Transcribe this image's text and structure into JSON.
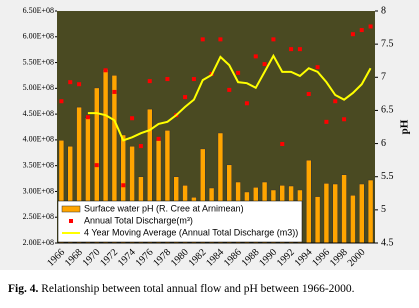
{
  "chart_data": {
    "type": "bar",
    "caption": {
      "label": "Fig. 4.",
      "text": "Relationship between total annual flow and pH between 1966-2000."
    },
    "y2label": "pH",
    "categories": [
      "1966",
      null,
      "1968",
      null,
      "1970",
      null,
      "1972",
      null,
      "1974",
      null,
      "1976",
      null,
      "1978",
      null,
      "1980",
      null,
      "1982",
      null,
      "1984",
      null,
      "1986",
      null,
      "1988",
      null,
      "1990",
      null,
      "1992",
      null,
      "1994",
      null,
      "1996",
      null,
      "1998",
      null,
      "2000",
      null
    ],
    "ylim": [
      200000000,
      650000000
    ],
    "yticks": [
      {
        "value": 200000000,
        "label": "2.00E+08"
      },
      {
        "value": 250000000,
        "label": "2.50E+08"
      },
      {
        "value": 300000000,
        "label": "3.00E+08"
      },
      {
        "value": 350000000,
        "label": "3.50E+08"
      },
      {
        "value": 400000000,
        "label": "4.00E+08"
      },
      {
        "value": 450000000,
        "label": "4.50E+08"
      },
      {
        "value": 500000000,
        "label": "5.00E+08"
      },
      {
        "value": 550000000,
        "label": "5.50E+08"
      },
      {
        "value": 600000000,
        "label": "6.00E+08"
      },
      {
        "value": 650000000,
        "label": "6.50E+08"
      }
    ],
    "y2lim": [
      4.5,
      8
    ],
    "y2ticks": [
      4.5,
      5,
      5.5,
      6,
      6.5,
      7,
      7.5,
      8
    ],
    "legend": "lower left",
    "series": [
      {
        "name": "Surface water pH (R. Cree at Arnimean)",
        "type": "bar",
        "axis": "y2",
        "color": "#ffa500",
        "values": [
          6.05,
          5.96,
          6.55,
          6.39,
          6.84,
          7.12,
          7.03,
          6.13,
          5.96,
          5.5,
          6.52,
          6.05,
          6.2,
          5.5,
          5.37,
          5.19,
          5.92,
          5.33,
          6.16,
          5.68,
          5.42,
          5.27,
          5.34,
          5.42,
          5.3,
          5.37,
          5.36,
          5.3,
          5.75,
          5.2,
          5.4,
          5.39,
          5.53,
          5.22,
          5.39,
          5.45
        ]
      },
      {
        "name": "Annual Total Discharge(m³)",
        "type": "scatter",
        "color": "#ff0000",
        "values": [
          475000000,
          512000000,
          508000000,
          444000000,
          351000000,
          535000000,
          493000000,
          312000000,
          442000000,
          388000000,
          514000000,
          402000000,
          518000000,
          448000000,
          483000000,
          518000000,
          595000000,
          528000000,
          595000000,
          497000000,
          530000000,
          471000000,
          562000000,
          547000000,
          595000000,
          392000000,
          576000000,
          576000000,
          489000000,
          541000000,
          435000000,
          475000000,
          440000000,
          605000000,
          613000000,
          620000000
        ]
      },
      {
        "name": "4 Year Moving Average (Annual Total Discharge (m3))",
        "type": "line",
        "color": "#ffff00",
        "values": [
          null,
          null,
          null,
          452000000,
          452000000,
          448000000,
          438000000,
          399000000,
          405000000,
          413000000,
          419000000,
          431000000,
          435000000,
          448000000,
          464000000,
          478000000,
          516000000,
          526000000,
          561000000,
          545000000,
          512000000,
          510000000,
          501000000,
          532000000,
          563000000,
          532000000,
          532000000,
          524000000,
          539000000,
          532000000,
          512000000,
          487000000,
          478000000,
          491000000,
          508000000,
          539000000
        ]
      }
    ]
  }
}
